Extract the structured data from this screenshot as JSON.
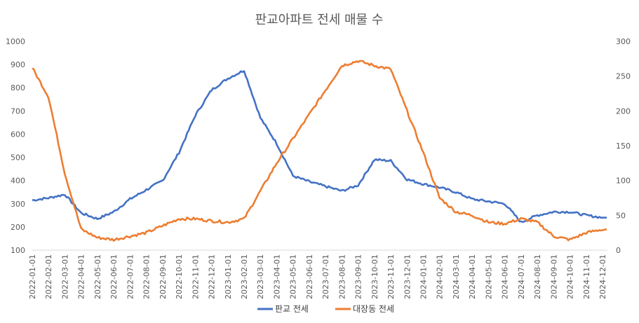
{
  "chart_data": {
    "type": "line",
    "title": "판교아파트 전세 매물 수",
    "x": [
      "2022-01-01",
      "2022-02-01",
      "2022-03-01",
      "2022-04-01",
      "2022-05-01",
      "2022-06-01",
      "2022-07-01",
      "2022-08-01",
      "2022-09-01",
      "2022-10-01",
      "2022-11-01",
      "2022-12-01",
      "2023-01-01",
      "2023-02-01",
      "2023-03-01",
      "2023-04-01",
      "2023-05-01",
      "2023-06-01",
      "2023-07-01",
      "2023-08-01",
      "2023-09-01",
      "2023-10-01",
      "2023-11-01",
      "2023-12-01",
      "2024-01-01",
      "2024-02-01",
      "2024-03-01",
      "2024-04-01",
      "2024-05-01",
      "2024-06-01",
      "2024-07-01",
      "2024-08-01",
      "2024-09-01",
      "2024-10-01",
      "2024-11-01",
      "2024-12-01"
    ],
    "y_left_ticks": [
      "100",
      "200",
      "300",
      "400",
      "500",
      "600",
      "700",
      "800",
      "900",
      "1000"
    ],
    "y_right_ticks": [
      "0",
      "50",
      "100",
      "150",
      "200",
      "250",
      "300"
    ],
    "ylim_left": [
      100,
      1000
    ],
    "ylim_right": [
      0,
      300
    ],
    "series": [
      {
        "name": "판교 전세",
        "axis": "left",
        "color": "#4472C4",
        "values": [
          315,
          325,
          340,
          260,
          235,
          265,
          320,
          360,
          400,
          520,
          680,
          790,
          840,
          875,
          670,
          560,
          420,
          395,
          375,
          355,
          380,
          490,
          485,
          405,
          385,
          370,
          350,
          320,
          310,
          300,
          220,
          250,
          265,
          265,
          250,
          240
        ]
      },
      {
        "name": "대장동 전세",
        "axis": "right",
        "color": "#ED7D31",
        "values": [
          262,
          220,
          110,
          30,
          18,
          15,
          20,
          25,
          35,
          45,
          45,
          42,
          40,
          45,
          85,
          125,
          160,
          195,
          230,
          265,
          272,
          265,
          260,
          200,
          140,
          75,
          55,
          50,
          40,
          38,
          45,
          40,
          20,
          15,
          25,
          30
        ]
      }
    ],
    "legend_position": "bottom",
    "grid": false
  }
}
